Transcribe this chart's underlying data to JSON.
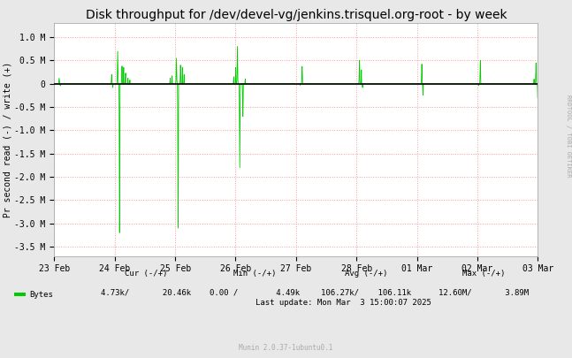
{
  "title": "Disk throughput for /dev/devel-vg/jenkins.trisquel.org-root - by week",
  "ylabel": "Pr second read (-) / write (+)",
  "background_color": "#e8e8e8",
  "plot_bg_color": "#ffffff",
  "grid_color": "#ff9999",
  "line_color": "#00cc00",
  "zero_line_color": "#000000",
  "ylim": [
    -3700000,
    1300000
  ],
  "yticks": [
    -3500000,
    -3000000,
    -2500000,
    -2000000,
    -1500000,
    -1000000,
    -500000,
    0,
    500000,
    1000000
  ],
  "ytick_labels": [
    "-3.5 M",
    "-3.0 M",
    "-2.5 M",
    "-2.0 M",
    "-1.5 M",
    "-1.0 M",
    "-0.5 M",
    "0",
    "0.5 M",
    "1.0 M"
  ],
  "xlabels": [
    "23 Feb",
    "24 Feb",
    "25 Feb",
    "26 Feb",
    "27 Feb",
    "28 Feb",
    "01 Mar",
    "02 Mar",
    "03 Mar"
  ],
  "legend_label": "Bytes",
  "legend_color": "#00cc00",
  "cur_label": "Cur (-/+)",
  "min_label": "Min (-/+)",
  "avg_label": "Avg (-/+)",
  "max_label": "Max (-/+)",
  "cur_val": "4.73k/       20.46k",
  "min_val": "0.00 /        4.49k",
  "avg_val": "106.27k/    106.11k",
  "max_val": "12.60M/       3.89M",
  "last_update": "Last update: Mon Mar  3 15:00:07 2025",
  "munin_text": "Munin 2.0.37-1ubuntu0.1",
  "rrdtool_text": "RRDTOOL / TOBI OETIKER",
  "title_fontsize": 10,
  "axis_fontsize": 7,
  "footer_fontsize": 7
}
